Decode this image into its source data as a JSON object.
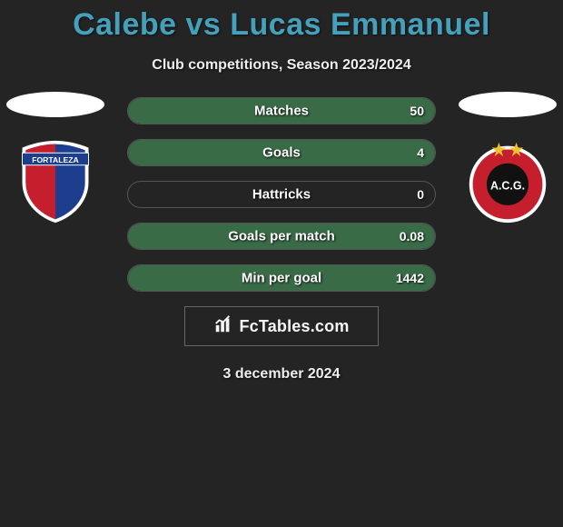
{
  "title": "Calebe vs Lucas Emmanuel",
  "subtitle": "Club competitions, Season 2023/2024",
  "date": "3 december 2024",
  "brand": "FcTables.com",
  "colors": {
    "title": "#44a0bb",
    "background": "#242424",
    "pill_border": "#555555",
    "fill_green": "#3a6b47",
    "fill_neutral": "#242424",
    "text": "#ffffff"
  },
  "stats": [
    {
      "label": "Matches",
      "right_value": "50",
      "left_pct": 0,
      "right_pct": 100,
      "right_color": "#3a6b47"
    },
    {
      "label": "Goals",
      "right_value": "4",
      "left_pct": 0,
      "right_pct": 100,
      "right_color": "#3a6b47"
    },
    {
      "label": "Hattricks",
      "right_value": "0",
      "left_pct": 0,
      "right_pct": 0,
      "right_color": "#3a6b47"
    },
    {
      "label": "Goals per match",
      "right_value": "0.08",
      "left_pct": 0,
      "right_pct": 100,
      "right_color": "#3a6b47"
    },
    {
      "label": "Min per goal",
      "right_value": "1442",
      "left_pct": 0,
      "right_pct": 100,
      "right_color": "#3a6b47"
    }
  ],
  "crest_left": {
    "name": "Fortaleza",
    "shield_colors": {
      "left": "#c51f2d",
      "right": "#1d3e8f",
      "outline": "#ffffff",
      "banner_bg": "#1d3e8f",
      "banner_text": "#ffffff"
    }
  },
  "crest_right": {
    "name": "Atlético Goianiense",
    "ring": "#ffffff",
    "inner": "#c51f2d",
    "center": "#111111",
    "text": "A.C.G.",
    "stars": "#f2c12e"
  }
}
